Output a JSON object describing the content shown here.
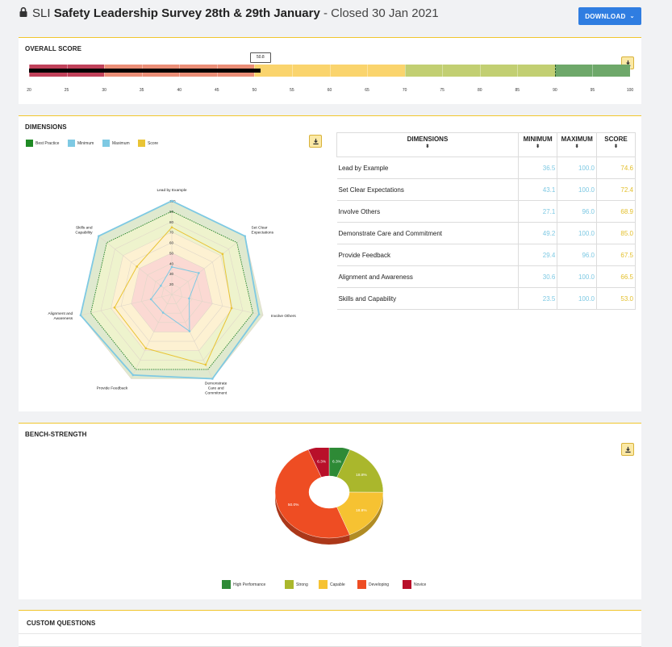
{
  "header": {
    "brand": "SLI",
    "survey_title": "Safety Leadership Survey 28th & 29th January",
    "closed_text": " - Closed 30 Jan 2021",
    "download_label": "DOWNLOAD",
    "icons": {
      "lock": "lock-icon",
      "download_caret": "chevron-down-icon"
    }
  },
  "overall": {
    "title": "OVERALL SCORE",
    "score": 50.8,
    "score_label": "50.8",
    "min": 20,
    "max": 100,
    "ticks": [
      "20",
      "25",
      "30",
      "35",
      "40",
      "45",
      "50",
      "55",
      "60",
      "65",
      "70",
      "75",
      "80",
      "85",
      "90",
      "95",
      "100"
    ],
    "bands": [
      {
        "from": 20,
        "to": 30,
        "color": "#c0415a"
      },
      {
        "from": 30,
        "to": 50,
        "color": "#ea8e77"
      },
      {
        "from": 50,
        "to": 70,
        "color": "#fad46d"
      },
      {
        "from": 70,
        "to": 90,
        "color": "#c2cf72"
      },
      {
        "from": 90,
        "to": 100,
        "color": "#6ea86a"
      }
    ]
  },
  "dimensions": {
    "title": "DIMENSIONS",
    "legend": [
      {
        "label": "Best Practice",
        "color": "#1f8a24"
      },
      {
        "label": "Minimum",
        "color": "#7ec9e3"
      },
      {
        "label": "Maximum",
        "color": "#7ec9e3"
      },
      {
        "label": "Score",
        "color": "#e9c435"
      }
    ],
    "table": {
      "headers": [
        "DIMENSIONS",
        "MINIMUM",
        "MAXIMUM",
        "SCORE"
      ],
      "sort_icon": "⬍",
      "rows": [
        {
          "name": "Lead by Example",
          "min": "36.5",
          "max": "100.0",
          "score": "74.6"
        },
        {
          "name": "Set Clear Expectations",
          "min": "43.1",
          "max": "100.0",
          "score": "72.4"
        },
        {
          "name": "Involve Others",
          "min": "27.1",
          "max": "96.0",
          "score": "68.9"
        },
        {
          "name": "Demonstrate Care and Commitment",
          "min": "49.2",
          "max": "100.0",
          "score": "85.0"
        },
        {
          "name": "Provide Feedback",
          "min": "29.4",
          "max": "96.0",
          "score": "67.5"
        },
        {
          "name": "Alignment and Awareness",
          "min": "30.6",
          "max": "100.0",
          "score": "66.5"
        },
        {
          "name": "Skills and Capability",
          "min": "23.5",
          "max": "100.0",
          "score": "53.0"
        }
      ]
    }
  },
  "radar": {
    "axis_labels": [
      [
        "Lead by Example"
      ],
      [
        "Set Clear",
        "Expectations"
      ],
      [
        "Involve Others"
      ],
      [
        "Demonstrate",
        "Care and",
        "Commitment"
      ],
      [
        "Provide Feedback"
      ],
      [
        "Alignment and",
        "Awareness"
      ],
      [
        "Skills and",
        "Capability"
      ]
    ],
    "ring_labels": [
      "20",
      "30",
      "40",
      "50",
      "60",
      "70",
      "80",
      "90",
      "100"
    ],
    "best_practice": [
      90,
      90,
      90,
      90,
      90,
      90,
      90
    ],
    "minimum": [
      36.5,
      43.1,
      27.1,
      49.2,
      29.4,
      30.6,
      23.5
    ],
    "maximum": [
      100,
      100,
      96,
      100,
      96,
      100,
      100
    ],
    "score": [
      74.6,
      72.4,
      68.9,
      85.0,
      67.5,
      66.5,
      53.0
    ]
  },
  "bench": {
    "title": "BENCH-STRENGTH",
    "chart_data": {
      "type": "pie",
      "slices": [
        {
          "label": "High Performance",
          "value": 6.3,
          "text": "6.3%",
          "color": "#2e8a36"
        },
        {
          "label": "Strong",
          "value": 18.8,
          "text": "18.8%",
          "color": "#aab72c"
        },
        {
          "label": "Capable",
          "value": 18.8,
          "text": "18.8%",
          "color": "#f6c232"
        },
        {
          "label": "Developing",
          "value": 50.0,
          "text": "50.0%",
          "color": "#ee4d23"
        },
        {
          "label": "Novice",
          "value": 6.3,
          "text": "6.3%",
          "color": "#b8102a"
        }
      ]
    }
  },
  "custom": {
    "title": "CUSTOM QUESTIONS"
  },
  "export_icon": "download-icon"
}
